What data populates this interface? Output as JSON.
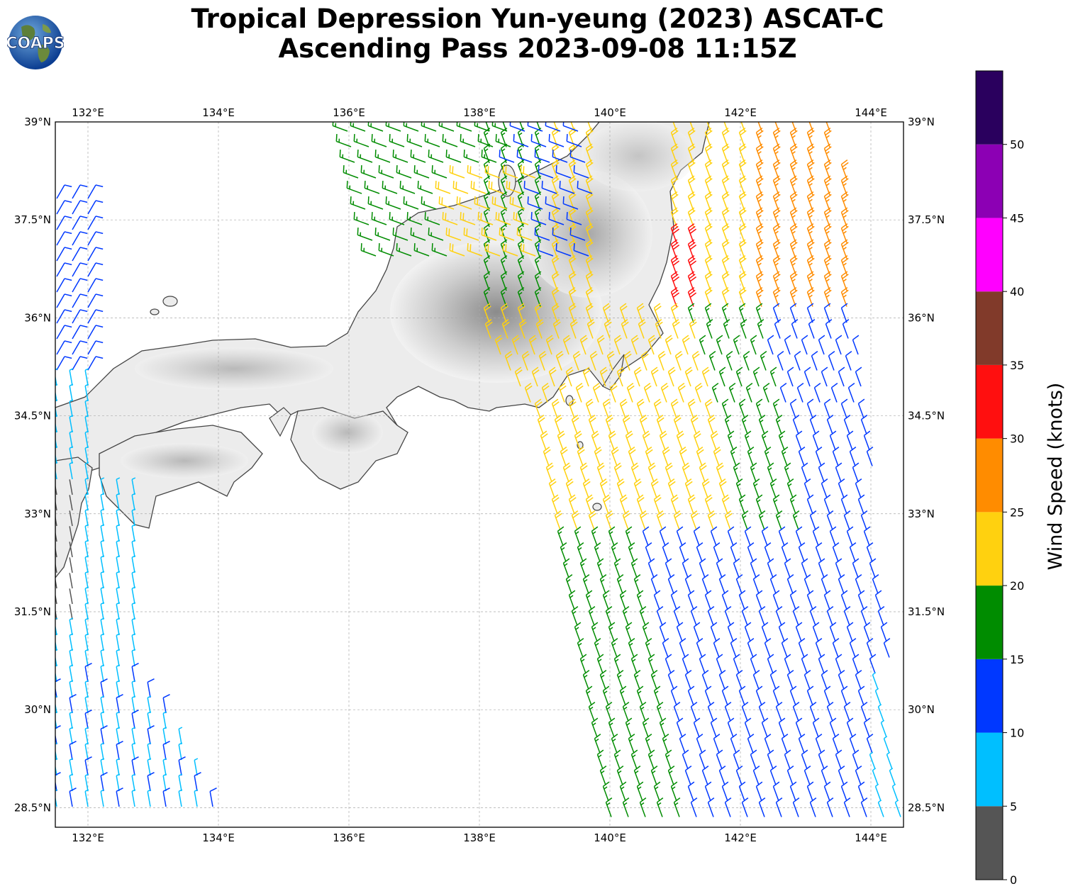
{
  "header": {
    "title_line1": "Tropical Depression Yun-yeung (2023) ASCAT-C",
    "title_line2": "Ascending Pass 2023-09-08 11:15Z"
  },
  "logo": {
    "text": "COAPS",
    "icon": "globe-logo-icon"
  },
  "map": {
    "lon_range": [
      131.5,
      144.5
    ],
    "lat_range": [
      28.2,
      39.0
    ],
    "lon_ticks": [
      {
        "value": 132,
        "label": "132°E"
      },
      {
        "value": 134,
        "label": "134°E"
      },
      {
        "value": 136,
        "label": "136°E"
      },
      {
        "value": 138,
        "label": "138°E"
      },
      {
        "value": 140,
        "label": "140°E"
      },
      {
        "value": 142,
        "label": "142°E"
      },
      {
        "value": 144,
        "label": "144°E"
      }
    ],
    "lat_ticks": [
      {
        "value": 39.0,
        "label": "39°N"
      },
      {
        "value": 37.5,
        "label": "37.5°N"
      },
      {
        "value": 36.0,
        "label": "36°N"
      },
      {
        "value": 34.5,
        "label": "34.5°N"
      },
      {
        "value": 33.0,
        "label": "33°N"
      },
      {
        "value": 31.5,
        "label": "31.5°N"
      },
      {
        "value": 30.0,
        "label": "30°N"
      },
      {
        "value": 28.5,
        "label": "28.5°N"
      }
    ],
    "gridlines": true,
    "land_shading": "grayscale terrain",
    "wind_barbs": "ASCAT-C ascending pass swaths (west and east)"
  },
  "colorbar": {
    "label": "Wind Speed (knots)",
    "ticks": [
      0,
      5,
      10,
      15,
      20,
      25,
      30,
      35,
      40,
      45,
      50
    ],
    "bins": [
      {
        "min": 0,
        "max": 5,
        "color": "#555555"
      },
      {
        "min": 5,
        "max": 10,
        "color": "#00bfff"
      },
      {
        "min": 10,
        "max": 15,
        "color": "#0038ff"
      },
      {
        "min": 15,
        "max": 20,
        "color": "#008c00"
      },
      {
        "min": 20,
        "max": 25,
        "color": "#ffd10f"
      },
      {
        "min": 25,
        "max": 30,
        "color": "#ff8c00"
      },
      {
        "min": 30,
        "max": 35,
        "color": "#ff0f0f"
      },
      {
        "min": 35,
        "max": 40,
        "color": "#813a2a"
      },
      {
        "min": 40,
        "max": 45,
        "color": "#ff00ff"
      },
      {
        "min": 45,
        "max": 50,
        "color": "#8c00b4"
      },
      {
        "min": 50,
        "max": 55,
        "color": "#2a005e"
      }
    ]
  }
}
